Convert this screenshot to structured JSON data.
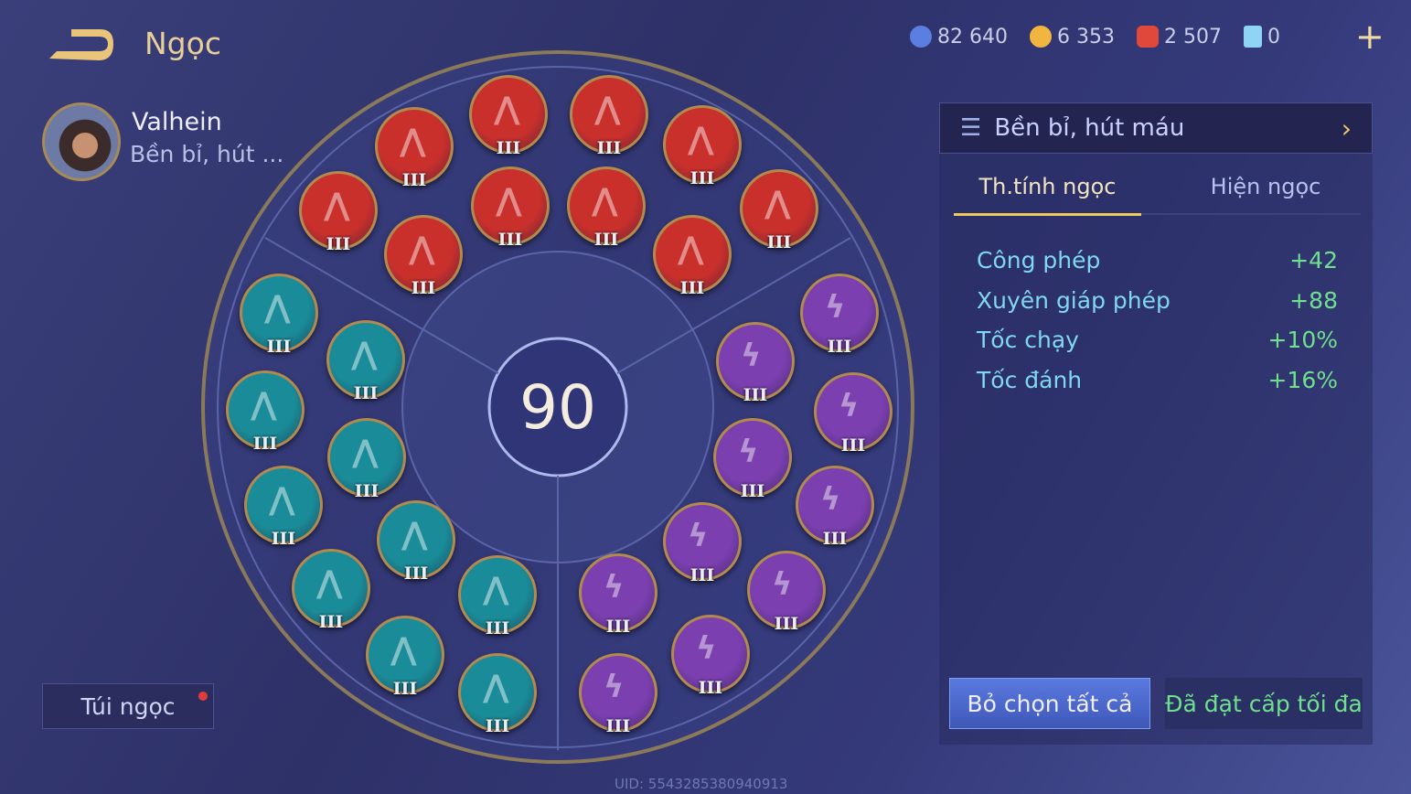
{
  "header": {
    "title": "Ngọc",
    "back_icon": "back-arrow-icon"
  },
  "currency": [
    {
      "icon": "blue-coin-icon",
      "value": "82 640",
      "color": "#5b7fe0"
    },
    {
      "icon": "gold-coin-icon",
      "value": "6 353",
      "color": "#f0b640"
    },
    {
      "icon": "red-gem-icon",
      "value": "2 507",
      "color": "#e0483c"
    },
    {
      "icon": "blue-card-icon",
      "value": "0",
      "color": "#8fd4f5"
    }
  ],
  "add_label": "+",
  "hero": {
    "name": "Valhein",
    "page": "Bền bỉ, hút ..."
  },
  "bag": {
    "label": "Túi ngọc",
    "has_notification": true
  },
  "center_level": "90",
  "runes": {
    "red": {
      "color": "#c9302c",
      "count": 10,
      "level": "III"
    },
    "teal": {
      "color": "#1a8c99",
      "count": 10,
      "level": "III"
    },
    "purple": {
      "color": "#7b3fb0",
      "count": 10,
      "level": "III"
    }
  },
  "panel": {
    "page_name": "Bền bỉ, hút máu",
    "tabs": [
      {
        "label": "Th.tính ngọc",
        "active": true
      },
      {
        "label": "Hiện ngọc",
        "active": false
      }
    ],
    "stats": [
      {
        "name": "Công phép",
        "value": "+42"
      },
      {
        "name": "Xuyên giáp phép",
        "value": "+88"
      },
      {
        "name": "Tốc chạy",
        "value": "+10%"
      },
      {
        "name": "Tốc đánh",
        "value": "+16%"
      }
    ],
    "clear_label": "Bỏ chọn tất cả",
    "max_label": "Đã đạt cấp tối đa"
  },
  "uid": "UID: 5543285380940913"
}
